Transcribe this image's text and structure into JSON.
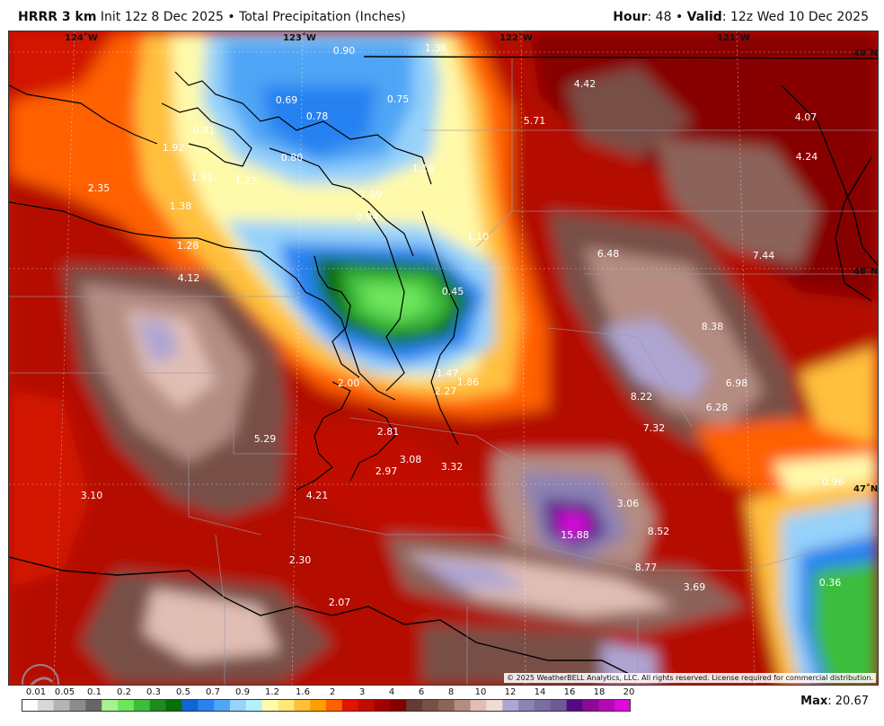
{
  "header": {
    "model": "HRRR 3 km",
    "init": "Init 12z 8 Dec 2025",
    "bullet": "•",
    "field": "Total Precipitation (Inches)",
    "hour_label": "Hour",
    "hour_value": ": 48",
    "valid_label": "Valid",
    "valid_value": ": 12z Wed 10 Dec 2025"
  },
  "map": {
    "longitude_labels": [
      "124˚W",
      "123˚W",
      "122˚W",
      "121˚W"
    ],
    "latitude_labels": [
      "49˚N",
      "48˚N",
      "47˚N"
    ],
    "point_values": [
      "0.90",
      "1.36",
      "4.42",
      "0.69",
      "0.75",
      "0.78",
      "5.71",
      "4.07",
      "0.81",
      "1.92",
      "0.80",
      "4.24",
      "1.91",
      "1.16",
      "1.27",
      "2.35",
      "1.38",
      "1.09",
      "0.94",
      "1.10",
      "1.28",
      "6.48",
      "7.44",
      "4.12",
      "0.45",
      "8.38",
      "1.47",
      "2.00",
      "1.86",
      "6.98",
      "2.27",
      "8.22",
      "6.28",
      "7.32",
      "2.81",
      "5.29",
      "3.08",
      "2.97",
      "3.32",
      "0.96",
      "3.10",
      "4.21",
      "3.06",
      "15.88",
      "8.52",
      "2.30",
      "8.77",
      "3.69",
      "0.36",
      "2.07"
    ],
    "copyright": "© 2025 WeatherBELL Analytics, LLC. All rights reserved. License required for commercial distribution.",
    "logo_text": "WEATHERBELL"
  },
  "legend": {
    "labels": [
      "0.01",
      "0.05",
      "0.1",
      "0.2",
      "0.3",
      "0.5",
      "0.7",
      "0.9",
      "1.2",
      "1.6",
      "2",
      "3",
      "4",
      "6",
      "8",
      "10",
      "12",
      "14",
      "16",
      "18",
      "20"
    ],
    "colors": [
      "#ffffff",
      "#d8d8d8",
      "#b4b4b4",
      "#8c8c8c",
      "#666666",
      "#a6f28f",
      "#6ee55b",
      "#3cbd3c",
      "#1c8c1c",
      "#0a6e0a",
      "#1464d2",
      "#2882f0",
      "#50a5f5",
      "#96d2fa",
      "#b4f0fa",
      "#fffaaa",
      "#ffe878",
      "#ffc03c",
      "#ffa000",
      "#ff6000",
      "#e11400",
      "#c00c00",
      "#a50000",
      "#870000",
      "#643b32",
      "#785046",
      "#8c645a",
      "#b48c82",
      "#e1beb4",
      "#f0dcd2",
      "#afa5d2",
      "#8c82b4",
      "#786ea0",
      "#6e5a96",
      "#550a82",
      "#8c0a96",
      "#b40ab4",
      "#dc0adc"
    ],
    "max_label": "Max",
    "max_value": ": 20.67"
  }
}
